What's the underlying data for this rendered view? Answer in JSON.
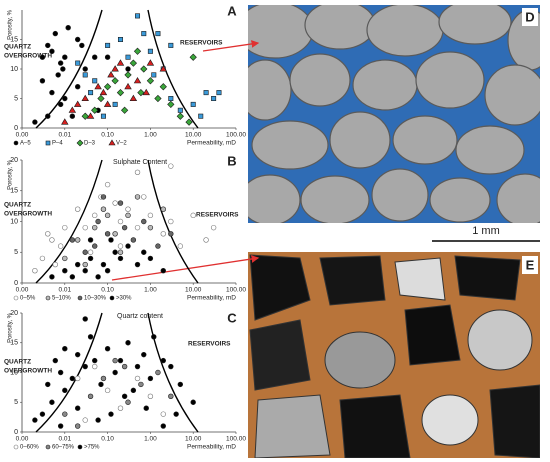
{
  "chart_data": [
    {
      "type": "scatter",
      "panel": "A",
      "xscale": "log",
      "xlim": [
        0.001,
        100
      ],
      "ylim": [
        0,
        20
      ],
      "xticks": [
        {
          "value": 0.001,
          "label": "0.00"
        },
        {
          "value": 0.01,
          "label": "0.01"
        },
        {
          "value": 0.1,
          "label": "0.10"
        },
        {
          "value": 1,
          "label": "1.00"
        },
        {
          "value": 10,
          "label": "10.00"
        },
        {
          "value": 100,
          "label": "100.00"
        }
      ],
      "yticks": [
        0,
        5,
        10,
        15
      ],
      "ylabel": "Porosity, %",
      "xlabel": "Permeability, mD",
      "annotations": [
        "QUARTZ",
        "OVERGROWTH",
        "RESERVOIRS"
      ],
      "series": [
        {
          "name": "A–5",
          "marker": "circle",
          "color": "#000000",
          "x": [
            0.003,
            0.004,
            0.005,
            0.006,
            0.008,
            0.01,
            0.012,
            0.02,
            0.003,
            0.005,
            0.008,
            0.01,
            0.015,
            0.004,
            0.002,
            0.02,
            0.03,
            0.05,
            0.1,
            0.3,
            0.06,
            0.009,
            0.007,
            0.025
          ],
          "y": [
            12,
            14,
            13,
            16,
            11,
            12,
            17,
            15,
            8,
            6,
            4,
            5,
            2,
            2,
            1,
            7,
            10,
            12,
            12,
            10,
            3,
            10,
            9,
            14
          ]
        },
        {
          "name": "P–4",
          "marker": "square",
          "color": "#3a9ad9",
          "x": [
            0.02,
            0.03,
            0.05,
            0.1,
            0.2,
            0.3,
            0.5,
            0.7,
            1.5,
            1,
            2,
            3,
            5,
            10,
            20,
            30,
            40,
            15,
            0.15,
            0.04,
            0.08,
            3,
            1.2
          ],
          "y": [
            11,
            9,
            8,
            14,
            15,
            12,
            19,
            16,
            16,
            13,
            10,
            14,
            3,
            4,
            6,
            5,
            6,
            2,
            4,
            6,
            2,
            5,
            9
          ]
        },
        {
          "name": "D–3",
          "marker": "diamond",
          "color": "#3aa63a",
          "x": [
            0.1,
            0.15,
            0.2,
            0.3,
            0.4,
            0.5,
            0.7,
            1,
            1.5,
            2,
            3,
            5,
            8,
            10,
            0.05,
            0.07,
            0.25,
            0.6,
            0.03
          ],
          "y": [
            7,
            8,
            6,
            9,
            11,
            13,
            10,
            8,
            5,
            7,
            4,
            2,
            1,
            12,
            3,
            5,
            3,
            6,
            2
          ]
        },
        {
          "name": "V–2",
          "marker": "triangle",
          "color": "#d62020",
          "x": [
            0.02,
            0.03,
            0.04,
            0.06,
            0.08,
            0.1,
            0.12,
            0.15,
            0.2,
            0.3,
            0.4,
            0.5,
            0.8,
            1,
            2,
            0.01,
            0.015
          ],
          "y": [
            4,
            5,
            2,
            7,
            6,
            4,
            9,
            10,
            11,
            7,
            5,
            8,
            6,
            11,
            10,
            1,
            3
          ]
        }
      ]
    },
    {
      "type": "scatter",
      "panel": "B",
      "subtitle": "Sulphate Content",
      "xscale": "log",
      "xlim": [
        0.001,
        100
      ],
      "ylim": [
        0,
        20
      ],
      "xticks": [
        {
          "value": 0.001,
          "label": "0.00"
        },
        {
          "value": 0.01,
          "label": "0.01"
        },
        {
          "value": 0.1,
          "label": "0.10"
        },
        {
          "value": 1,
          "label": "1.00"
        },
        {
          "value": 10,
          "label": "10.00"
        },
        {
          "value": 100,
          "label": "100.00"
        }
      ],
      "yticks": [
        0,
        5,
        10,
        15,
        20
      ],
      "ylabel": "Porosity, %",
      "xlabel": "Permeability, mD",
      "annotations": [
        "QUARTZ",
        "OVERGROWTH",
        "RESERVOIRS"
      ],
      "series": [
        {
          "name": "0–5%",
          "marker": "circle",
          "color": "#ffffff",
          "x": [
            0.002,
            0.003,
            0.005,
            0.008,
            0.01,
            0.02,
            0.03,
            0.05,
            0.07,
            0.1,
            0.15,
            0.2,
            0.3,
            0.5,
            0.7,
            1,
            2,
            3,
            5,
            10,
            20,
            30,
            3,
            0.5,
            0.04,
            0.2,
            0.006,
            0.004
          ],
          "y": [
            2,
            4,
            7,
            6,
            9,
            12,
            9,
            11,
            14,
            16,
            13,
            10,
            12,
            9,
            14,
            11,
            8,
            10,
            6,
            11,
            7,
            9,
            19,
            18,
            5,
            6,
            3,
            8
          ]
        },
        {
          "name": "5–10%",
          "marker": "circle",
          "color": "#bbbbbb",
          "x": [
            0.01,
            0.02,
            0.05,
            0.08,
            0.15,
            0.3,
            0.5,
            1,
            2,
            0.03,
            0.2,
            0.1
          ],
          "y": [
            4,
            7,
            9,
            12,
            8,
            11,
            14,
            9,
            12,
            3,
            5,
            11
          ]
        },
        {
          "name": "10–30%",
          "marker": "circle",
          "color": "#666666",
          "x": [
            0.015,
            0.03,
            0.06,
            0.1,
            0.2,
            0.4,
            0.7,
            1.5,
            3,
            0.05,
            0.08,
            0.25
          ],
          "y": [
            7,
            5,
            10,
            8,
            13,
            7,
            10,
            6,
            8,
            6,
            14,
            9
          ]
        },
        {
          "name": ">30%",
          "marker": "circle",
          "color": "#000000",
          "x": [
            0.005,
            0.01,
            0.015,
            0.02,
            0.03,
            0.04,
            0.06,
            0.08,
            0.1,
            0.15,
            0.2,
            0.3,
            0.5,
            0.7,
            1,
            2,
            0.04,
            0.12
          ],
          "y": [
            1,
            2,
            1,
            3,
            2,
            4,
            1,
            3,
            2,
            5,
            4,
            6,
            3,
            5,
            4,
            2,
            7,
            7
          ]
        }
      ]
    },
    {
      "type": "scatter",
      "panel": "C",
      "subtitle": "Quartz content",
      "xscale": "log",
      "xlim": [
        0.001,
        100
      ],
      "ylim": [
        0,
        20
      ],
      "xticks": [
        {
          "value": 0.001,
          "label": "0.00"
        },
        {
          "value": 0.01,
          "label": "0.01"
        },
        {
          "value": 0.1,
          "label": "0.10"
        },
        {
          "value": 1,
          "label": "1.00"
        },
        {
          "value": 10,
          "label": "10.00"
        },
        {
          "value": 100,
          "label": "100.00"
        }
      ],
      "yticks": [
        0,
        5,
        10,
        15,
        20
      ],
      "ylabel": "Porosity, %",
      "xlabel": "Permeability, mD",
      "annotations": [
        "QUARTZ",
        "OVERGROWTH",
        "RESERVOIRS"
      ],
      "series": [
        {
          "name": "0–60%",
          "marker": "circle",
          "color": "#ffffff",
          "x": [
            0.03,
            0.05,
            0.1,
            0.2,
            0.5,
            1,
            2,
            0.02
          ],
          "y": [
            2,
            11,
            7,
            4,
            9,
            6,
            3,
            9
          ]
        },
        {
          "name": "60–75%",
          "marker": "circle",
          "color": "#888888",
          "x": [
            0.01,
            0.04,
            0.08,
            0.15,
            0.3,
            0.6,
            1.5,
            0.02,
            0.25,
            3
          ],
          "y": [
            3,
            6,
            9,
            12,
            5,
            8,
            10,
            1,
            11,
            6
          ]
        },
        {
          "name": ">75%",
          "marker": "circle",
          "color": "#000000",
          "x": [
            0.002,
            0.003,
            0.004,
            0.005,
            0.006,
            0.008,
            0.01,
            0.015,
            0.02,
            0.03,
            0.04,
            0.05,
            0.07,
            0.1,
            0.15,
            0.2,
            0.3,
            0.4,
            0.5,
            0.7,
            1,
            2,
            3,
            5,
            10,
            0.01,
            0.02,
            0.06,
            0.12,
            0.8,
            2,
            4,
            0.008,
            0.25,
            1.2,
            0.03
          ],
          "y": [
            2,
            3,
            8,
            5,
            12,
            10,
            14,
            9,
            13,
            11,
            16,
            12,
            8,
            14,
            10,
            12,
            15,
            7,
            11,
            13,
            9,
            12,
            11,
            8,
            5,
            7,
            4,
            2,
            3,
            4,
            1,
            3,
            1,
            6,
            16,
            19
          ]
        }
      ]
    }
  ],
  "images": [
    {
      "label": "D"
    },
    {
      "label": "E"
    }
  ],
  "scale_bar": "1 mm"
}
